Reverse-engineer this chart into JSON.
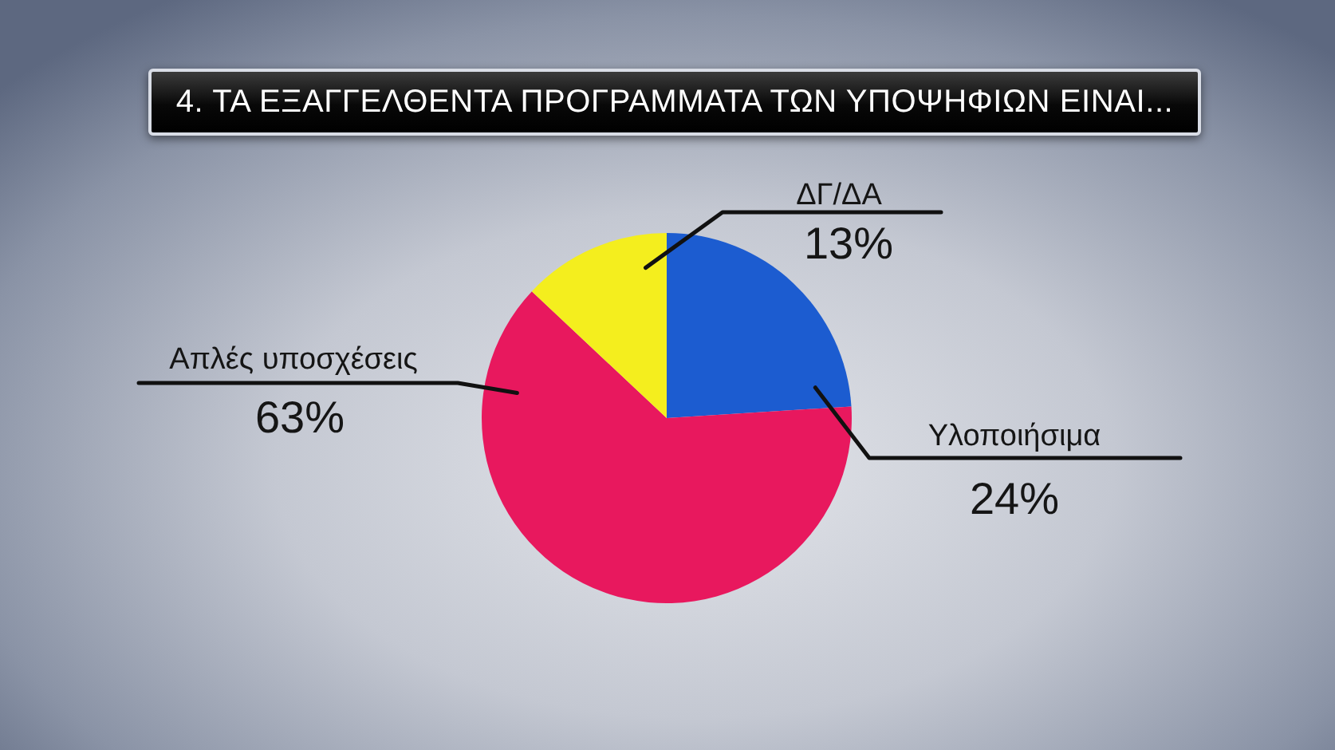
{
  "chart_data": {
    "type": "pie",
    "title": "4. ΤΑ ΕΞΑΓΓΕΛΘΕΝΤΑ ΠΡΟΓΡΑΜΜΑΤΑ ΤΩΝ ΥΠΟΨΗΦΙΩΝ ΕΙΝΑΙ...",
    "categories": [
      "Υλοποιήσιμα",
      "Απλές υποσχέσεις",
      "ΔΓ/ΔΑ"
    ],
    "values": [
      24,
      63,
      13
    ],
    "value_labels": [
      "24%",
      "63%",
      "13%"
    ],
    "colors": [
      "#1c5cd0",
      "#e8185e",
      "#f4ee1e"
    ]
  }
}
